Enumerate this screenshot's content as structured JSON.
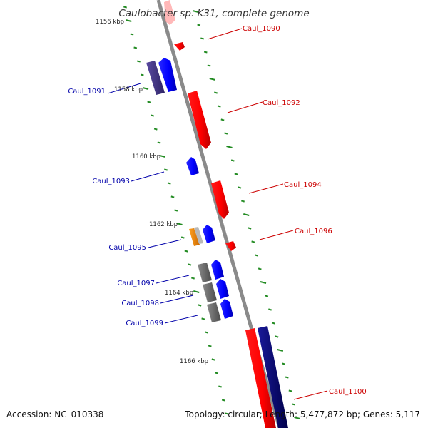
{
  "title": "Caulobacter sp. K31, complete genome",
  "footer": {
    "accession": "Accession: NC_010338",
    "summary": "Topology: circular; Length: 5,477,872 bp; Genes: 5,117"
  },
  "colors": {
    "forward": "#ff0000",
    "reverse": "#0000ff",
    "forward_label": "#cc0000",
    "reverse_label": "#0000aa",
    "backbone": "#8a8a8a",
    "ticks": "#228b22",
    "gray_gene": "#707070",
    "orange_gene": "#ff8c00",
    "purple_gene": "#4b3a8c",
    "navy_gene": "#000080"
  },
  "ruler": [
    {
      "label": "1156 kbp"
    },
    {
      "label": "1158 kbp"
    },
    {
      "label": "1160 kbp"
    },
    {
      "label": "1162 kbp"
    },
    {
      "label": "1164 kbp"
    },
    {
      "label": "1166 kbp"
    }
  ],
  "genes": [
    {
      "label": "Caul_1090",
      "strand": "forward"
    },
    {
      "label": "Caul_1091",
      "strand": "reverse"
    },
    {
      "label": "Caul_1092",
      "strand": "forward"
    },
    {
      "label": "Caul_1093",
      "strand": "reverse"
    },
    {
      "label": "Caul_1094",
      "strand": "forward"
    },
    {
      "label": "Caul_1095",
      "strand": "reverse"
    },
    {
      "label": "Caul_1096",
      "strand": "forward"
    },
    {
      "label": "Caul_1097",
      "strand": "reverse"
    },
    {
      "label": "Caul_1098",
      "strand": "reverse"
    },
    {
      "label": "Caul_1099",
      "strand": "reverse"
    },
    {
      "label": "Caul_1100",
      "strand": "forward"
    }
  ]
}
